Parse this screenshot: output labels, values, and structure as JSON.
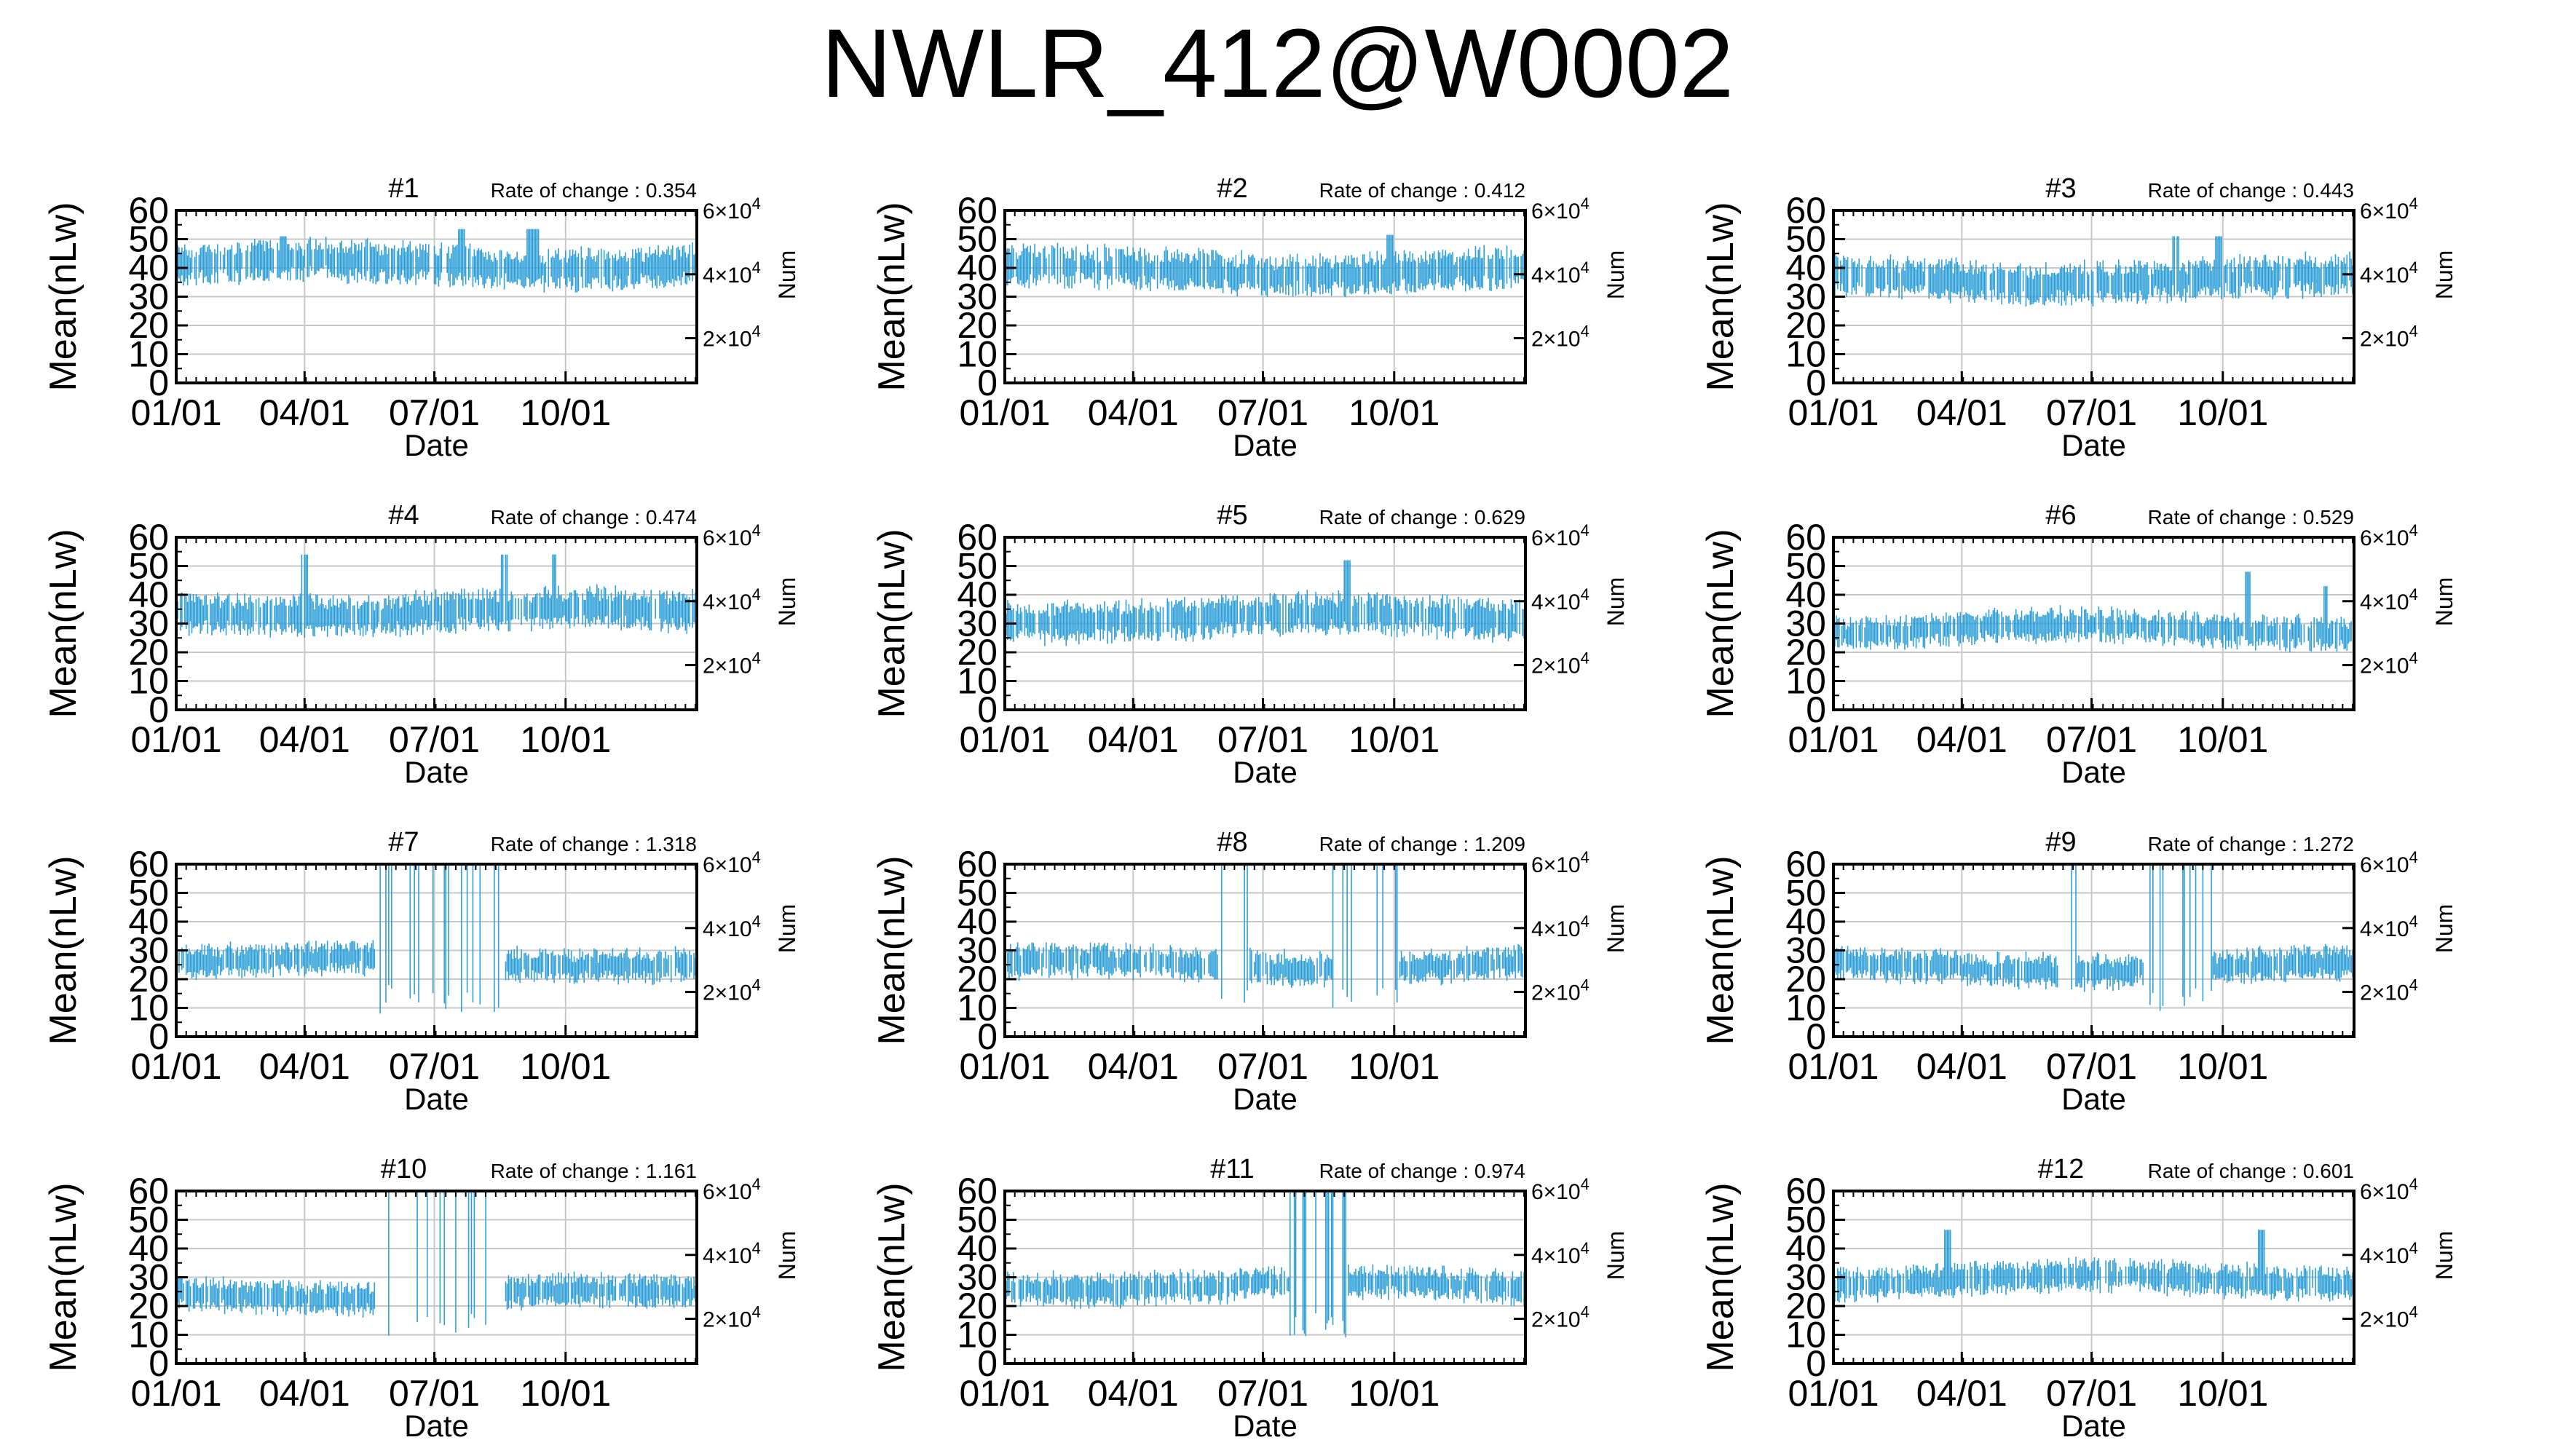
{
  "title": "NWLR_412@W0002",
  "chart_data": [
    {
      "type": "line",
      "title": "#1",
      "rate": "Rate of change : 0.354",
      "base": 41,
      "spread": 5,
      "bumps": [
        [
          75,
          20,
          3
        ],
        [
          200,
          25,
          3
        ],
        [
          250,
          25,
          5
        ]
      ]
    },
    {
      "type": "line",
      "title": "#2",
      "rate": "Rate of change : 0.412",
      "base": 39,
      "spread": 5,
      "bumps": [
        [
          80,
          15,
          4
        ],
        [
          270,
          25,
          3
        ]
      ]
    },
    {
      "type": "line",
      "title": "#3",
      "rate": "Rate of change : 0.443",
      "base": 36,
      "spread": 5,
      "bumps": [
        [
          240,
          30,
          3
        ],
        [
          270,
          30,
          3
        ]
      ]
    },
    {
      "type": "line",
      "title": "#4",
      "rate": "Rate of change : 0.474",
      "base": 34,
      "spread": 5,
      "bumps": [
        [
          90,
          40,
          3
        ],
        [
          230,
          40,
          3
        ],
        [
          265,
          40,
          2
        ]
      ]
    },
    {
      "type": "line",
      "title": "#5",
      "rate": "Rate of change : 0.629",
      "base": 32,
      "spread": 5,
      "bumps": [
        [
          240,
          40,
          3
        ]
      ]
    },
    {
      "type": "line",
      "title": "#6",
      "rate": "Rate of change : 0.529",
      "base": 28,
      "spread": 4,
      "bumps": [
        [
          290,
          40,
          3
        ],
        [
          345,
          30,
          2
        ]
      ]
    },
    {
      "type": "line",
      "title": "#7",
      "rate": "Rate of change : 1.318",
      "base": 26,
      "spread": 4,
      "gaps": [
        [
          140,
          230
        ]
      ]
    },
    {
      "type": "line",
      "title": "#8",
      "rate": "Rate of change : 1.209",
      "base": 25,
      "spread": 4,
      "gaps": [
        [
          150,
          170
        ],
        [
          230,
          275
        ]
      ]
    },
    {
      "type": "line",
      "title": "#9",
      "rate": "Rate of change : 1.272",
      "base": 24,
      "spread": 4,
      "gaps": [
        [
          158,
          170
        ],
        [
          220,
          265
        ]
      ]
    },
    {
      "type": "line",
      "title": "#10",
      "rate": "Rate of change : 1.161",
      "base": 24,
      "spread": 4,
      "gaps": [
        [
          140,
          230
        ]
      ]
    },
    {
      "type": "line",
      "title": "#11",
      "rate": "Rate of change : 0.974",
      "base": 27,
      "spread": 4,
      "gaps": [
        [
          200,
          240
        ]
      ]
    },
    {
      "type": "line",
      "title": "#12",
      "rate": "Rate of change : 0.601",
      "base": 29,
      "spread": 4,
      "bumps": [
        [
          80,
          35,
          3
        ],
        [
          300,
          35,
          3
        ]
      ]
    }
  ],
  "axes": {
    "xlabel": "Date",
    "ylabel": "Mean(nLw)",
    "y2label": "Num",
    "x_ticks": [
      "01/01",
      "04/01",
      "07/01",
      "10/01"
    ],
    "x_tick_days": [
      0,
      90,
      181,
      273
    ],
    "x_range_days": [
      0,
      365
    ],
    "y_ticks": [
      0,
      10,
      20,
      30,
      40,
      50,
      60
    ],
    "ylim": [
      0,
      60
    ],
    "y2_ticks": [
      {
        "value": 20000,
        "mant": "2",
        "exp": "4"
      },
      {
        "value": 40000,
        "mant": "4",
        "exp": "4"
      },
      {
        "value": 60000,
        "mant": "6",
        "exp": "4"
      }
    ],
    "y2lim": [
      6000,
      60000
    ],
    "grid": true
  },
  "colors": {
    "series": "#2e9fd8",
    "grid": "#c8c8c8",
    "axis": "#000000"
  }
}
